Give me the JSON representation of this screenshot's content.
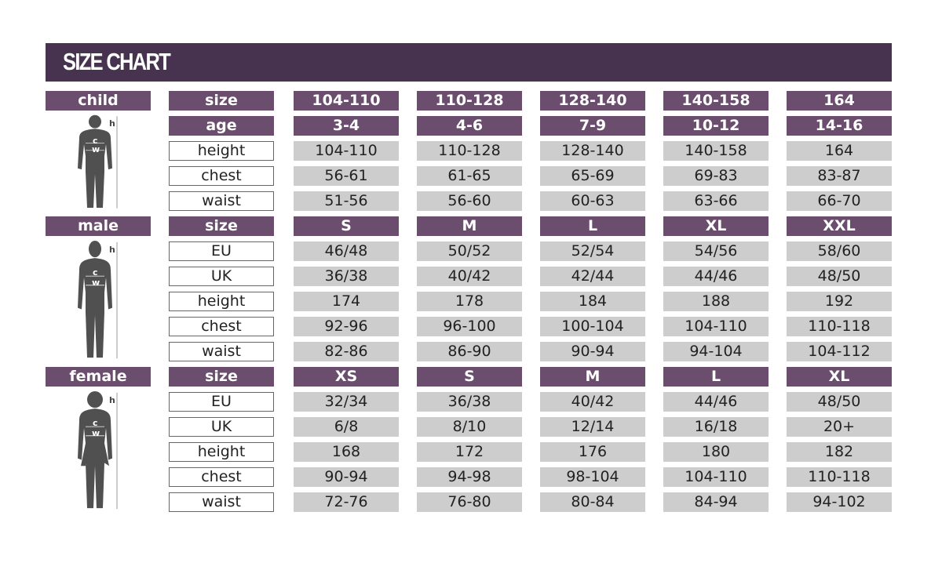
{
  "title": "SIZE CHART",
  "colors": {
    "title_bar": "#47334f",
    "header": "#6b4d6e",
    "value_bg": "#cdcdcd"
  },
  "sections": [
    {
      "name": "child",
      "figure_labels": {
        "h": "h",
        "c": "c",
        "w": "w"
      },
      "rows": [
        {
          "label": "size",
          "header": true,
          "values": [
            "104-110",
            "110-128",
            "128-140",
            "140-158",
            "164"
          ]
        },
        {
          "label": "age",
          "header": true,
          "values": [
            "3-4",
            "4-6",
            "7-9",
            "10-12",
            "14-16"
          ]
        },
        {
          "label": "height",
          "values": [
            "104-110",
            "110-128",
            "128-140",
            "140-158",
            "164"
          ]
        },
        {
          "label": "chest",
          "values": [
            "56-61",
            "61-65",
            "65-69",
            "69-83",
            "83-87"
          ]
        },
        {
          "label": "waist",
          "values": [
            "51-56",
            "56-60",
            "60-63",
            "63-66",
            "66-70"
          ]
        }
      ]
    },
    {
      "name": "male",
      "figure_labels": {
        "h": "h",
        "c": "c",
        "w": "w"
      },
      "rows": [
        {
          "label": "size",
          "header": true,
          "values": [
            "S",
            "M",
            "L",
            "XL",
            "XXL"
          ]
        },
        {
          "label": "EU",
          "values": [
            "46/48",
            "50/52",
            "52/54",
            "54/56",
            "58/60"
          ]
        },
        {
          "label": "UK",
          "values": [
            "36/38",
            "40/42",
            "42/44",
            "44/46",
            "48/50"
          ]
        },
        {
          "label": "height",
          "values": [
            "174",
            "178",
            "184",
            "188",
            "192"
          ]
        },
        {
          "label": "chest",
          "values": [
            "92-96",
            "96-100",
            "100-104",
            "104-110",
            "110-118"
          ]
        },
        {
          "label": "waist",
          "values": [
            "82-86",
            "86-90",
            "90-94",
            "94-104",
            "104-112"
          ]
        }
      ]
    },
    {
      "name": "female",
      "figure_labels": {
        "h": "h",
        "c": "c",
        "w": "w"
      },
      "rows": [
        {
          "label": "size",
          "header": true,
          "values": [
            "XS",
            "S",
            "M",
            "L",
            "XL"
          ]
        },
        {
          "label": "EU",
          "values": [
            "32/34",
            "36/38",
            "40/42",
            "44/46",
            "48/50"
          ]
        },
        {
          "label": "UK",
          "values": [
            "6/8",
            "8/10",
            "12/14",
            "16/18",
            "20+"
          ]
        },
        {
          "label": "height",
          "values": [
            "168",
            "172",
            "176",
            "180",
            "182"
          ]
        },
        {
          "label": "chest",
          "values": [
            "90-94",
            "94-98",
            "98-104",
            "104-110",
            "110-118"
          ]
        },
        {
          "label": "waist",
          "values": [
            "72-76",
            "76-80",
            "80-84",
            "84-94",
            "94-102"
          ]
        }
      ]
    }
  ]
}
